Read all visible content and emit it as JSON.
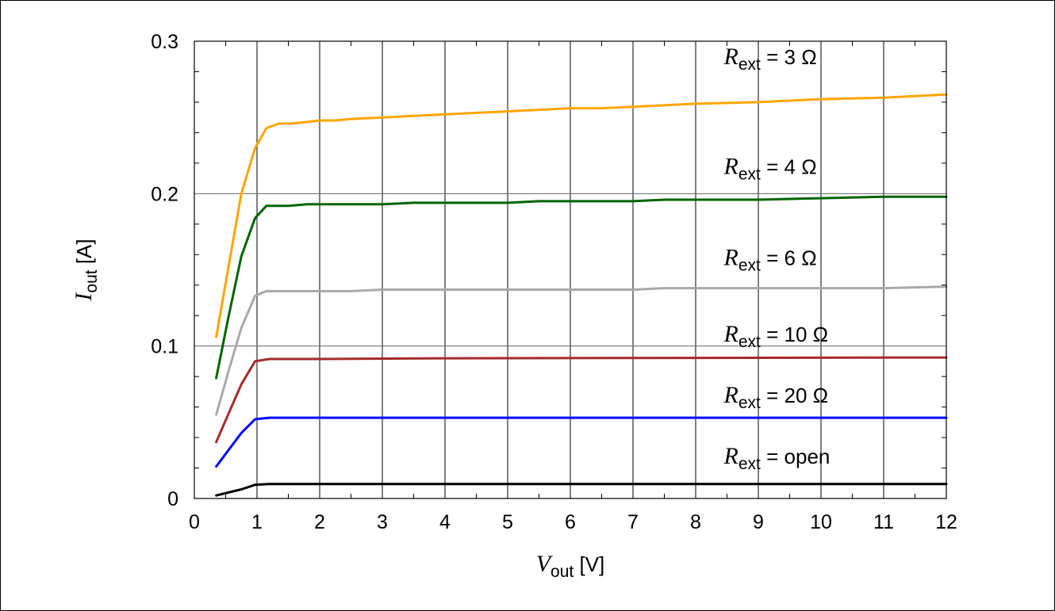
{
  "chart_data": {
    "type": "line",
    "xlabel": {
      "var": "V",
      "sub": "out",
      "unit": " [V]"
    },
    "ylabel": {
      "var": "I",
      "sub": "out",
      "unit": " [A]"
    },
    "xlim": [
      0,
      12
    ],
    "ylim": [
      0,
      0.3
    ],
    "xticks": [
      0,
      1,
      2,
      3,
      4,
      5,
      6,
      7,
      8,
      9,
      10,
      11,
      12
    ],
    "yticks": [
      0,
      0.1,
      0.2,
      0.3
    ],
    "xtick_labels": [
      "0",
      "1",
      "2",
      "3",
      "4",
      "5",
      "6",
      "7",
      "8",
      "9",
      "10",
      "11",
      "12"
    ],
    "ytick_labels": [
      "0",
      "0.1",
      "0.2",
      "0.3"
    ],
    "grid": true,
    "series": [
      {
        "name": {
          "var": "R",
          "sub": "ext",
          "rest": " = 3 Ω"
        },
        "color": "#ffa500",
        "x": [
          0.35,
          0.55,
          0.75,
          0.97,
          1.15,
          1.35,
          1.55,
          1.8,
          2.0,
          2.25,
          2.5,
          3.0,
          4.0,
          5.0,
          6.0,
          6.5,
          7.0,
          8.0,
          9.0,
          10.0,
          11.0,
          12.0
        ],
        "y": [
          0.106,
          0.153,
          0.2,
          0.23,
          0.243,
          0.246,
          0.246,
          0.247,
          0.248,
          0.248,
          0.249,
          0.25,
          0.252,
          0.254,
          0.256,
          0.256,
          0.257,
          0.259,
          0.26,
          0.262,
          0.263,
          0.265
        ]
      },
      {
        "name": {
          "var": "R",
          "sub": "ext",
          "rest": " = 4 Ω"
        },
        "color": "#006400",
        "x": [
          0.35,
          0.55,
          0.75,
          0.97,
          1.15,
          1.5,
          1.8,
          2.0,
          3.0,
          3.5,
          5.0,
          5.5,
          7.0,
          7.5,
          9.0,
          10.0,
          11.0,
          12.0
        ],
        "y": [
          0.079,
          0.12,
          0.159,
          0.184,
          0.192,
          0.192,
          0.193,
          0.193,
          0.193,
          0.194,
          0.194,
          0.195,
          0.195,
          0.196,
          0.196,
          0.197,
          0.198,
          0.198
        ]
      },
      {
        "name": {
          "var": "R",
          "sub": "ext",
          "rest": " = 6 Ω"
        },
        "color": "#a9a9a9",
        "x": [
          0.35,
          0.55,
          0.75,
          0.97,
          1.15,
          2.5,
          3.0,
          7.0,
          7.5,
          11.0,
          12.0
        ],
        "y": [
          0.055,
          0.084,
          0.112,
          0.133,
          0.136,
          0.136,
          0.137,
          0.137,
          0.138,
          0.138,
          0.139
        ]
      },
      {
        "name": {
          "var": "R",
          "sub": "ext",
          "rest": " = 10 Ω"
        },
        "color": "#a52a2a",
        "x": [
          0.35,
          0.55,
          0.75,
          0.97,
          1.2,
          2.0,
          4.0,
          12.0
        ],
        "y": [
          0.037,
          0.056,
          0.075,
          0.09,
          0.0915,
          0.0915,
          0.092,
          0.0925
        ]
      },
      {
        "name": {
          "var": "R",
          "sub": "ext",
          "rest": " = 20 Ω"
        },
        "color": "#0000ff",
        "x": [
          0.35,
          0.55,
          0.75,
          0.97,
          1.2,
          3.0,
          7.0,
          12.0
        ],
        "y": [
          0.021,
          0.032,
          0.043,
          0.052,
          0.053,
          0.053,
          0.053,
          0.053
        ]
      },
      {
        "name": {
          "var": "R",
          "sub": "ext",
          "rest": " = open"
        },
        "color": "#000000",
        "x": [
          0.35,
          0.75,
          0.97,
          1.2,
          12.0
        ],
        "y": [
          0.002,
          0.006,
          0.009,
          0.0095,
          0.0095
        ]
      }
    ],
    "series_label_anchor_y": [
      0.285,
      0.213,
      0.153,
      0.103,
      0.063,
      0.023
    ]
  }
}
